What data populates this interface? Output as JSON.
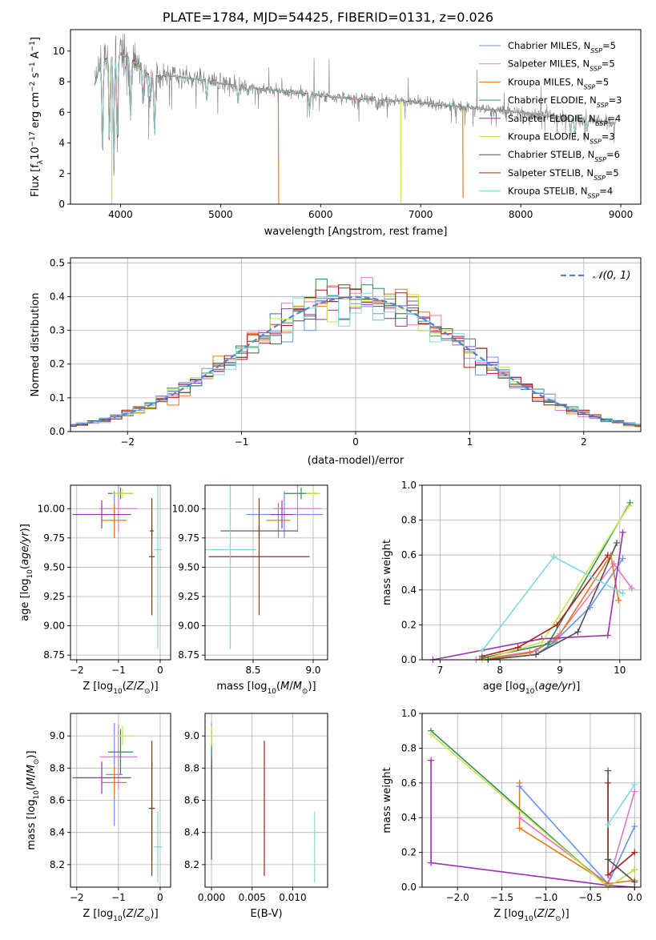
{
  "figure": {
    "title": "PLATE=1784, MJD=54425, FIBERID=0131, z=0.026"
  },
  "legend_labels": [
    {
      "prefix": "Chabrier MILES, N",
      "sub": "SSP",
      "suffix": "=5"
    },
    {
      "prefix": "Salpeter MILES, N",
      "sub": "SSP",
      "suffix": "=5"
    },
    {
      "prefix": "Kroupa MILES, N",
      "sub": "SSP",
      "suffix": "=5"
    },
    {
      "prefix": "Chabrier ELODIE, N",
      "sub": "SSP",
      "suffix": "=3"
    },
    {
      "prefix": "Salpeter ELODIE, N",
      "sub": "SSP",
      "suffix": "=4"
    },
    {
      "prefix": "Kroupa ELODIE, N",
      "sub": "SSP",
      "suffix": "=3"
    },
    {
      "prefix": "Chabrier STELIB, N",
      "sub": "SSP",
      "suffix": "=6"
    },
    {
      "prefix": "Salpeter STELIB, N",
      "sub": "SSP",
      "suffix": "=5"
    },
    {
      "prefix": "Kroupa STELIB, N",
      "sub": "SSP",
      "suffix": "=4"
    }
  ],
  "series_colors": [
    "#6495ed",
    "#e377c2",
    "#e07b17",
    "#2e8b57",
    "#9b30b0",
    "#c8e64a",
    "#505050",
    "#b31b1b",
    "#7fd8e0"
  ],
  "chart_data": [
    {
      "type": "line",
      "id": "spectrum",
      "xlabel": "wavelength [Angstrom, rest frame]",
      "ylabel": "Flux [f_λ 10^-17 erg cm^-2 s^-1 A^-1]",
      "xlim": [
        3500,
        9200
      ],
      "ylim": [
        0,
        11.4
      ],
      "xticks": [
        4000,
        5000,
        6000,
        7000,
        8000,
        9000
      ],
      "yticks": [
        0,
        2,
        4,
        6,
        8,
        10
      ],
      "grid": false,
      "legend": "upper right",
      "data_color": "#808080",
      "continuum": [
        [
          3740,
          7.8
        ],
        [
          3800,
          9.2
        ],
        [
          3900,
          9.6
        ],
        [
          4000,
          9.8
        ],
        [
          4100,
          9.5
        ],
        [
          4300,
          8.3
        ],
        [
          4500,
          8.4
        ],
        [
          4800,
          8.1
        ],
        [
          5000,
          7.9
        ],
        [
          5300,
          7.6
        ],
        [
          5600,
          7.4
        ],
        [
          6000,
          7.1
        ],
        [
          6300,
          6.9
        ],
        [
          6563,
          6.8
        ],
        [
          6800,
          6.75
        ],
        [
          7000,
          6.6
        ],
        [
          7500,
          6.3
        ],
        [
          8000,
          6.0
        ],
        [
          8500,
          5.6
        ],
        [
          8950,
          5.3
        ]
      ],
      "absorption_features": [
        [
          3820,
          3.2
        ],
        [
          3889,
          4.0
        ],
        [
          3933,
          2.5
        ],
        [
          3968,
          3.8
        ],
        [
          4101,
          5.5
        ],
        [
          4226,
          6.4
        ],
        [
          4300,
          6.8
        ],
        [
          4340,
          4.5
        ],
        [
          4861,
          6.8
        ],
        [
          5175,
          6.6
        ],
        [
          5270,
          7.2
        ],
        [
          5890,
          6.1
        ],
        [
          6563,
          6.3
        ],
        [
          8498,
          4.6
        ],
        [
          8542,
          4.4
        ],
        [
          8662,
          4.8
        ]
      ],
      "model_glitches": [
        [
          3910,
          0.0,
          "#c8e64a"
        ],
        [
          5577,
          0.0,
          "#e07b17"
        ],
        [
          6800,
          0.1,
          "#c8e64a"
        ],
        [
          7420,
          0.4,
          "#e07b17"
        ]
      ]
    },
    {
      "type": "histogram",
      "id": "residuals",
      "xlabel": "(data-model)/error",
      "ylabel": "Normed distribution",
      "xlim": [
        -2.5,
        2.5
      ],
      "ylim": [
        0,
        0.515
      ],
      "xticks": [
        -2,
        -1,
        0,
        1,
        2
      ],
      "yticks": [
        0.0,
        0.1,
        0.2,
        0.3,
        0.4,
        0.5
      ],
      "bin_width": 0.1,
      "reference": {
        "label": "𝒩(0, 1)",
        "style": "dashed",
        "color": "#4f86d4"
      },
      "grid": true,
      "legend": "upper right"
    },
    {
      "type": "scatter",
      "id": "age-vs-Z",
      "xlabel": "Z [log10(Z/Z⊙)]",
      "ylabel": "age [log10(age/yr)]",
      "xlim": [
        -2.15,
        0.25
      ],
      "ylim": [
        8.71,
        10.2
      ],
      "xticks": [
        -2,
        -1,
        0
      ],
      "yticks": [
        8.75,
        9.0,
        9.25,
        9.5,
        9.75,
        10.0
      ],
      "error_bars": true,
      "grid": true
    },
    {
      "type": "scatter",
      "id": "age-vs-mass",
      "xlabel": "mass [log10(M/M⊙)]",
      "ylabel": "",
      "xlim": [
        8.1,
        9.12
      ],
      "ylim": [
        8.71,
        10.2
      ],
      "xticks": [
        8.5,
        9.0
      ],
      "yticks": [
        8.75,
        9.0,
        9.25,
        9.5,
        9.75,
        10.0
      ],
      "error_bars": true,
      "grid": true
    },
    {
      "type": "line",
      "id": "massweight-vs-age",
      "xlabel": "age [log10(age/yr)]",
      "ylabel": "mass weight",
      "xlim": [
        6.7,
        10.35
      ],
      "ylim": [
        0,
        1.0
      ],
      "xticks": [
        7,
        8,
        9,
        10
      ],
      "yticks": [
        0.0,
        0.2,
        0.4,
        0.6,
        0.8,
        1.0
      ],
      "grid": true
    },
    {
      "type": "scatter",
      "id": "mass-vs-Z",
      "xlabel": "Z [log10(Z/Z⊙)]",
      "ylabel": "mass [log10(M/M⊙)]",
      "xlim": [
        -2.15,
        0.25
      ],
      "ylim": [
        8.06,
        9.14
      ],
      "xticks": [
        -2,
        -1,
        0
      ],
      "yticks": [
        8.2,
        8.4,
        8.6,
        8.8,
        9.0
      ],
      "error_bars": true,
      "grid": true
    },
    {
      "type": "scatter",
      "id": "mass-vs-ebv",
      "xlabel": "E(B-V)",
      "ylabel": "",
      "xlim": [
        -0.0008,
        0.0143
      ],
      "ylim": [
        8.06,
        9.14
      ],
      "xticks": [
        0.0,
        0.005,
        0.01
      ],
      "yticks": [
        8.2,
        8.4,
        8.6,
        8.8,
        9.0
      ],
      "error_bars": true,
      "grid": true
    },
    {
      "type": "line",
      "id": "massweight-vs-Z",
      "xlabel": "Z [log10(Z/Z⊙)]",
      "ylabel": "mass weight",
      "xlim": [
        -2.4,
        0.07
      ],
      "ylim": [
        0,
        1.0
      ],
      "xticks": [
        -2.0,
        -1.5,
        -1.0,
        -0.5,
        0.0
      ],
      "yticks": [
        0.0,
        0.2,
        0.4,
        0.6,
        0.8,
        1.0
      ],
      "grid": true
    }
  ],
  "fits": [
    {
      "name": "Chabrier MILES",
      "Z": -1.1,
      "Zerr": 0.2,
      "age": 9.95,
      "ageErr": 0.2,
      "mass": 8.76,
      "massErr": 0.32,
      "ebv": 0.0,
      "ebvErr": 0.0,
      "hist_amp": 0.395,
      "hist_sig": 1.0,
      "weights": [
        [
          7.8,
          0.0
        ],
        [
          8.6,
          0.03
        ],
        [
          8.9,
          0.1
        ],
        [
          9.5,
          0.3
        ],
        [
          10.05,
          0.58
        ]
      ],
      "zweights": [
        [
          -1.3,
          0.58
        ],
        [
          -0.3,
          0.02
        ],
        [
          0.0,
          0.35
        ]
      ]
    },
    {
      "name": "Salpeter MILES",
      "Z": -1.0,
      "Zerr": 0.45,
      "age": 10.0,
      "ageErr": 0.2,
      "mass": 8.87,
      "massErr": 0.2,
      "ebv": 0.0,
      "ebvErr": 0.0,
      "hist_amp": 0.41,
      "hist_sig": 0.96,
      "weights": [
        [
          7.6,
          0.0
        ],
        [
          8.6,
          0.05
        ],
        [
          9.0,
          0.15
        ],
        [
          9.9,
          0.55
        ],
        [
          10.2,
          0.41
        ]
      ],
      "zweights": [
        [
          -1.3,
          0.4
        ],
        [
          -0.3,
          0.02
        ],
        [
          0.0,
          0.55
        ]
      ]
    },
    {
      "name": "Kroupa MILES",
      "Z": -1.1,
      "Zerr": 0.3,
      "age": 9.9,
      "ageErr": 0.15,
      "mass": 8.71,
      "massErr": 0.1,
      "ebv": 0.0,
      "ebvErr": 0.0,
      "hist_amp": 0.4,
      "hist_sig": 0.98,
      "weights": [
        [
          7.7,
          0.0
        ],
        [
          8.5,
          0.04
        ],
        [
          8.95,
          0.12
        ],
        [
          9.85,
          0.6
        ],
        [
          9.98,
          0.34
        ]
      ],
      "zweights": [
        [
          -1.3,
          0.6
        ],
        [
          -1.3,
          0.34
        ],
        [
          -0.3,
          0.02
        ],
        [
          0.0,
          0.04
        ]
      ]
    },
    {
      "name": "Chabrier ELODIE",
      "Z": -0.95,
      "Zerr": 0.3,
      "age": 10.13,
      "ageErr": 0.05,
      "mass": 8.9,
      "massErr": 0.14,
      "ebv": 0.0,
      "ebvErr": 0.0,
      "hist_amp": 0.395,
      "hist_sig": 1.01,
      "weights": [
        [
          7.7,
          0.01
        ],
        [
          8.8,
          0.09
        ],
        [
          10.17,
          0.9
        ]
      ],
      "zweights": [
        [
          -2.3,
          0.9
        ],
        [
          -0.3,
          0.0
        ],
        [
          0.0,
          0.1
        ]
      ]
    },
    {
      "name": "Salpeter ELODIE",
      "Z": -1.4,
      "Zerr": 0.7,
      "age": 9.95,
      "ageErr": 0.12,
      "mass": 8.74,
      "massErr": 0.1,
      "ebv": 0.0,
      "ebvErr": 0.0,
      "hist_amp": 0.39,
      "hist_sig": 1.02,
      "weights": [
        [
          6.88,
          0.0
        ],
        [
          8.7,
          0.12
        ],
        [
          9.8,
          0.14
        ],
        [
          10.05,
          0.73
        ]
      ],
      "zweights": [
        [
          -2.3,
          0.73
        ],
        [
          -2.3,
          0.14
        ],
        [
          -0.3,
          0.01
        ],
        [
          0.0,
          0.0
        ]
      ]
    },
    {
      "name": "Kroupa ELODIE",
      "Z": -0.9,
      "Zerr": 0.25,
      "age": 10.13,
      "ageErr": 0.04,
      "mass": 9.0,
      "massErr": 0.06,
      "ebv": 0.0,
      "ebvErr": 0.0,
      "hist_amp": 0.4,
      "hist_sig": 0.99,
      "weights": [
        [
          7.7,
          0.0
        ],
        [
          8.7,
          0.1
        ],
        [
          10.15,
          0.88
        ]
      ],
      "zweights": [
        [
          -2.3,
          0.88
        ],
        [
          -0.3,
          0.0
        ],
        [
          0.0,
          0.1
        ]
      ]
    },
    {
      "name": "Chabrier STELIB",
      "Z": -0.2,
      "Zerr": 0.05,
      "age": 9.81,
      "ageErr": 0.05,
      "mass": 8.55,
      "massErr": 0.32,
      "ebv": 0.0,
      "ebvErr": 0.0,
      "hist_amp": 0.39,
      "hist_sig": 1.0,
      "weights": [
        [
          7.8,
          0.0
        ],
        [
          8.6,
          0.03
        ],
        [
          9.3,
          0.16
        ],
        [
          9.95,
          0.67
        ]
      ],
      "zweights": [
        [
          -0.3,
          0.67
        ],
        [
          -0.3,
          0.16
        ],
        [
          0.0,
          0.03
        ]
      ]
    },
    {
      "name": "Salpeter STELIB",
      "Z": -0.2,
      "Zerr": 0.07,
      "age": 9.59,
      "ageErr": 0.5,
      "mass": 8.55,
      "massErr": 0.42,
      "ebv": 0.0065,
      "ebvErr": 0.0,
      "hist_amp": 0.4,
      "hist_sig": 1.0,
      "weights": [
        [
          7.7,
          0.02
        ],
        [
          8.3,
          0.07
        ],
        [
          8.95,
          0.2
        ],
        [
          9.8,
          0.6
        ]
      ],
      "zweights": [
        [
          -0.3,
          0.6
        ],
        [
          -0.3,
          0.07
        ],
        [
          0.0,
          0.2
        ]
      ]
    },
    {
      "name": "Kroupa STELIB",
      "Z": -0.06,
      "Zerr": 0.1,
      "age": 9.65,
      "ageErr": 0.85,
      "mass": 8.31,
      "massErr": 0.22,
      "ebv": 0.0127,
      "ebvErr": 0.0,
      "hist_amp": 0.38,
      "hist_sig": 1.03,
      "weights": [
        [
          7.7,
          0.05
        ],
        [
          8.9,
          0.59
        ],
        [
          10.05,
          0.38
        ]
      ],
      "zweights": [
        [
          -0.3,
          0.36
        ],
        [
          0.0,
          0.59
        ]
      ]
    }
  ]
}
